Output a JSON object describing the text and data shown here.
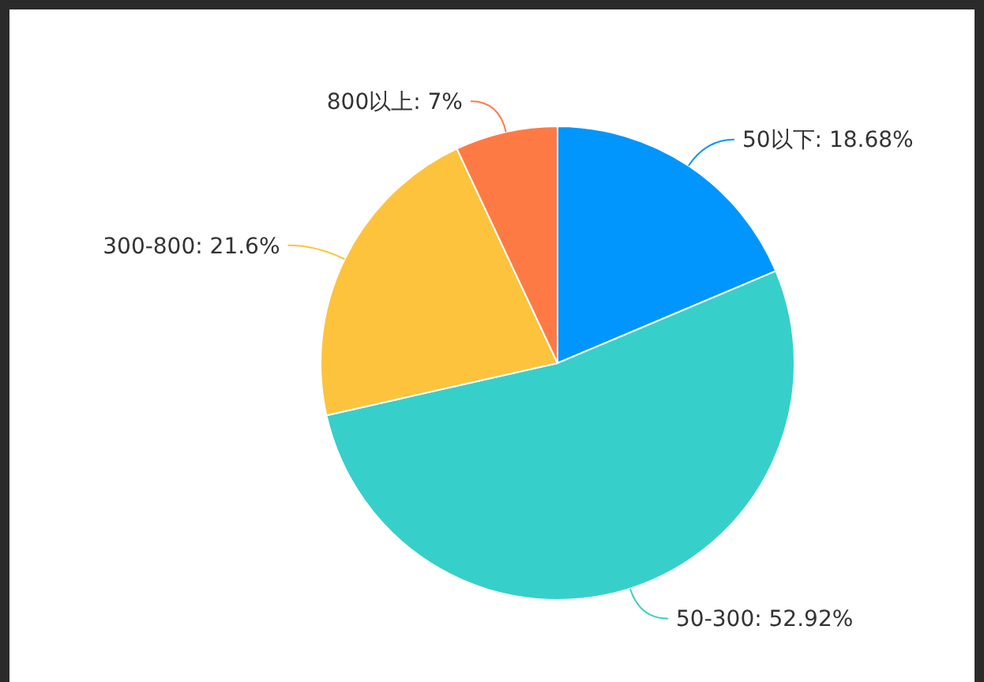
{
  "chart_data": {
    "type": "pie",
    "categories": [
      "50以下",
      "50-300",
      "300-800",
      "800以上"
    ],
    "values": [
      18.68,
      52.92,
      21.6,
      7
    ],
    "colors": [
      "#0096fe",
      "#37cfca",
      "#fec33c",
      "#fe7a45"
    ],
    "value_labels": [
      ": 18.68%",
      ": 52.92%",
      ": 21.6%",
      ": 7%"
    ]
  }
}
